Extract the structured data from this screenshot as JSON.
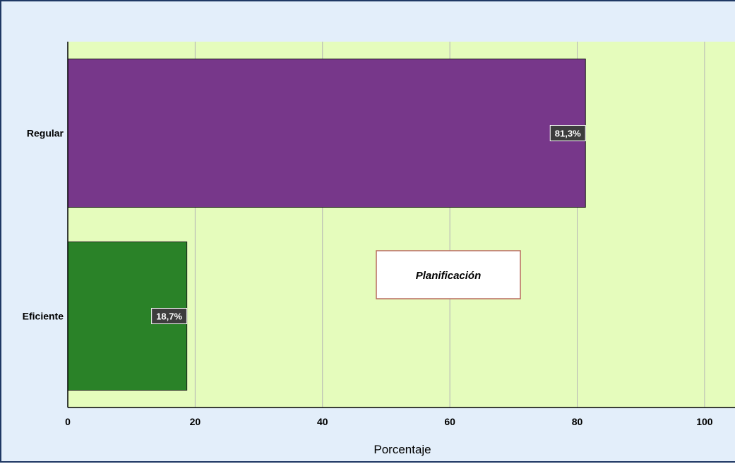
{
  "chart_data": {
    "type": "bar",
    "orientation": "horizontal",
    "categories": [
      "Regular",
      "Eficiente"
    ],
    "values": [
      81.3,
      18.7
    ],
    "data_labels": [
      "81,3%",
      "18,7%"
    ],
    "colors": [
      "#77378a",
      "#2a8228"
    ],
    "xlabel": "Porcentaje",
    "ylabel": "",
    "xlim": [
      0,
      105
    ],
    "xticks": [
      0,
      20,
      40,
      60,
      80,
      100
    ],
    "xtick_labels": [
      "0",
      "20",
      "40",
      "60",
      "80",
      "100"
    ],
    "grid": true,
    "plot_background": "#e5fcbc",
    "annotation": "Planificación"
  }
}
